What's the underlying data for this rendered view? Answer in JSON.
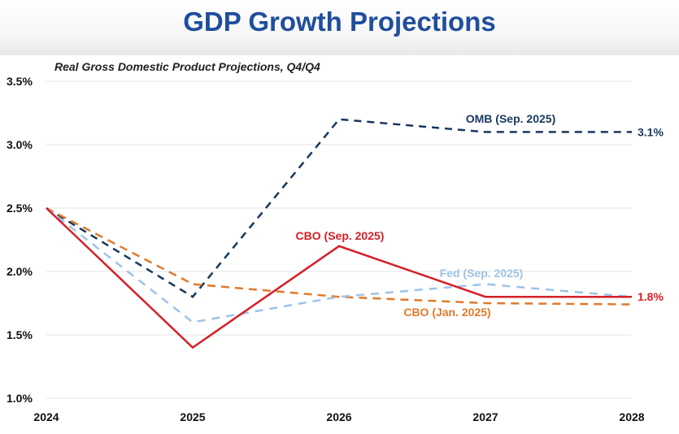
{
  "header": {
    "title": "GDP Growth Projections"
  },
  "chart_data": {
    "type": "line",
    "title": "GDP Growth Projections",
    "subtitle": "Real Gross Domestic Product Projections, Q4/Q4",
    "xlabel": "",
    "ylabel": "",
    "x": [
      "2024",
      "2025",
      "2026",
      "2027",
      "2028"
    ],
    "ylim": [
      1.0,
      3.5
    ],
    "yticks": [
      1.0,
      1.5,
      2.0,
      2.5,
      3.0,
      3.5
    ],
    "ytick_labels": [
      "1.0%",
      "1.5%",
      "2.0%",
      "2.5%",
      "3.0%",
      "3.5%"
    ],
    "grid": true,
    "legend": "inline labels",
    "series": [
      {
        "name": "OMB (Sep. 2025)",
        "values": [
          2.5,
          1.8,
          3.2,
          3.1,
          3.1
        ],
        "color": "#17375e",
        "style": "dashed",
        "end_label": "3.1%"
      },
      {
        "name": "CBO (Jan. 2025)",
        "values": [
          2.5,
          1.9,
          1.8,
          1.75,
          1.74
        ],
        "color": "#e07a2a",
        "style": "dashed",
        "end_label": ""
      },
      {
        "name": "Fed (Sep. 2025)",
        "values": [
          2.5,
          1.6,
          1.8,
          1.9,
          1.8
        ],
        "color": "#9dc3e6",
        "style": "dashed",
        "end_label": ""
      },
      {
        "name": "CBO (Sep. 2025)",
        "values": [
          2.5,
          1.4,
          2.2,
          1.8,
          1.8
        ],
        "color": "#d42027",
        "style": "solid",
        "end_label": "1.8%"
      }
    ]
  }
}
